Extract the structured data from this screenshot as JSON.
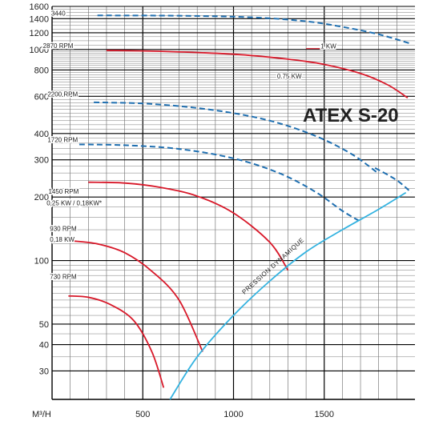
{
  "chart_data": {
    "type": "line",
    "title": "ATEX S-20",
    "xlabel": "M³/H",
    "xlim": [
      0,
      2000
    ],
    "ylim": [
      22,
      1600
    ],
    "y_scale": "log",
    "x_ticks": [
      500,
      1000,
      1500
    ],
    "x_tick_labels": [
      "500",
      "1000",
      "1500"
    ],
    "y_ticks": [
      30,
      40,
      50,
      100,
      200,
      300,
      400,
      600,
      800,
      1000,
      1200,
      1400,
      1600
    ],
    "y_tick_labels": [
      "30",
      "40",
      "50",
      "100",
      "200",
      "300",
      "400",
      "600",
      "800",
      "1000",
      "1200",
      "1400",
      "1600"
    ],
    "grid": true,
    "colors": {
      "rpm_curve": "#d8192a",
      "dashed_curve": "#1f6fb0",
      "dynamic_pressure": "#35b3e0"
    },
    "curve_labels": [
      {
        "text": "3440",
        "at": [
          -5,
          1450
        ]
      },
      {
        "text": "2870 RPM",
        "at": [
          -50,
          1015
        ]
      },
      {
        "text": "1 KW",
        "at": [
          1480,
          1010
        ]
      },
      {
        "text": "0.75 KW",
        "at": [
          1240,
          730
        ]
      },
      {
        "text": "2200 RPM",
        "at": [
          -25,
          600
        ]
      },
      {
        "text": "1720 RPM",
        "at": [
          -25,
          365
        ]
      },
      {
        "text": "1450 RPM",
        "at": [
          -20,
          207
        ]
      },
      {
        "text": "0,25 KW / 0,18KW*",
        "at": [
          -30,
          183
        ]
      },
      {
        "text": "930 RPM",
        "at": [
          -12,
          138
        ]
      },
      {
        "text": "0,18 KW",
        "at": [
          -12,
          123
        ]
      },
      {
        "text": "730 RPM",
        "at": [
          -12,
          82
        ]
      },
      {
        "text": "PRESSION DYNAMIQUE",
        "at": [
          1060,
          69
        ]
      }
    ],
    "series": [
      {
        "style": "dashed",
        "color": "#1f6fb0",
        "x": [
          250,
          700,
          1100,
          1400,
          1600,
          1800,
          1970
        ],
        "y": [
          1450,
          1445,
          1420,
          1360,
          1280,
          1180,
          1070
        ]
      },
      {
        "style": "solid",
        "color": "#d8192a",
        "x": [
          300,
          600,
          1000,
          1300,
          1500,
          1700,
          1850,
          1960
        ],
        "y": [
          990,
          980,
          950,
          900,
          850,
          770,
          680,
          590
        ]
      },
      {
        "style": "dashed",
        "color": "#1f6fb0",
        "x": [
          230,
          550,
          900,
          1200,
          1450,
          1650,
          1800
        ],
        "y": [
          562,
          552,
          515,
          460,
          390,
          320,
          258
        ]
      },
      {
        "style": "dashed",
        "color": "#1f6fb0",
        "x": [
          150,
          400,
          700,
          1000,
          1250,
          1450,
          1600,
          1700
        ],
        "y": [
          355,
          352,
          338,
          305,
          260,
          212,
          172,
          153
        ]
      },
      {
        "style": "dashed",
        "color": "#1f6fb0",
        "x": [
          1780,
          1900,
          1980
        ],
        "y": [
          275,
          240,
          210
        ]
      },
      {
        "style": "solid",
        "color": "#d8192a",
        "x": [
          200,
          400,
          600,
          800,
          1000,
          1200,
          1300
        ],
        "y": [
          235,
          233,
          222,
          202,
          168,
          122,
          90
        ]
      },
      {
        "style": "solid",
        "color": "#d8192a",
        "x": [
          110,
          250,
          400,
          550,
          700,
          830
        ],
        "y": [
          124,
          120,
          109,
          89,
          65,
          37
        ]
      },
      {
        "style": "solid",
        "color": "#d8192a",
        "x": [
          90,
          200,
          320,
          450,
          550,
          615
        ],
        "y": [
          68,
          67,
          62,
          52,
          37,
          25
        ]
      },
      {
        "name": "PRESSION DYNAMIQUE",
        "style": "solid",
        "color": "#35b3e0",
        "x": [
          650,
          800,
          1000,
          1200,
          1400,
          1600,
          1800,
          1950
        ],
        "y": [
          22,
          35,
          55,
          80,
          110,
          140,
          175,
          210
        ]
      }
    ],
    "annotations": [
      {
        "text": "1 KW",
        "x": [
          1400,
          1430,
          1460,
          1480
        ],
        "y": [
          1010,
          1010,
          1010,
          1010
        ]
      },
      {
        "text": "0.75 KW",
        "x": [
          1280,
          1360
        ],
        "y": [
          735,
          735
        ]
      }
    ]
  }
}
